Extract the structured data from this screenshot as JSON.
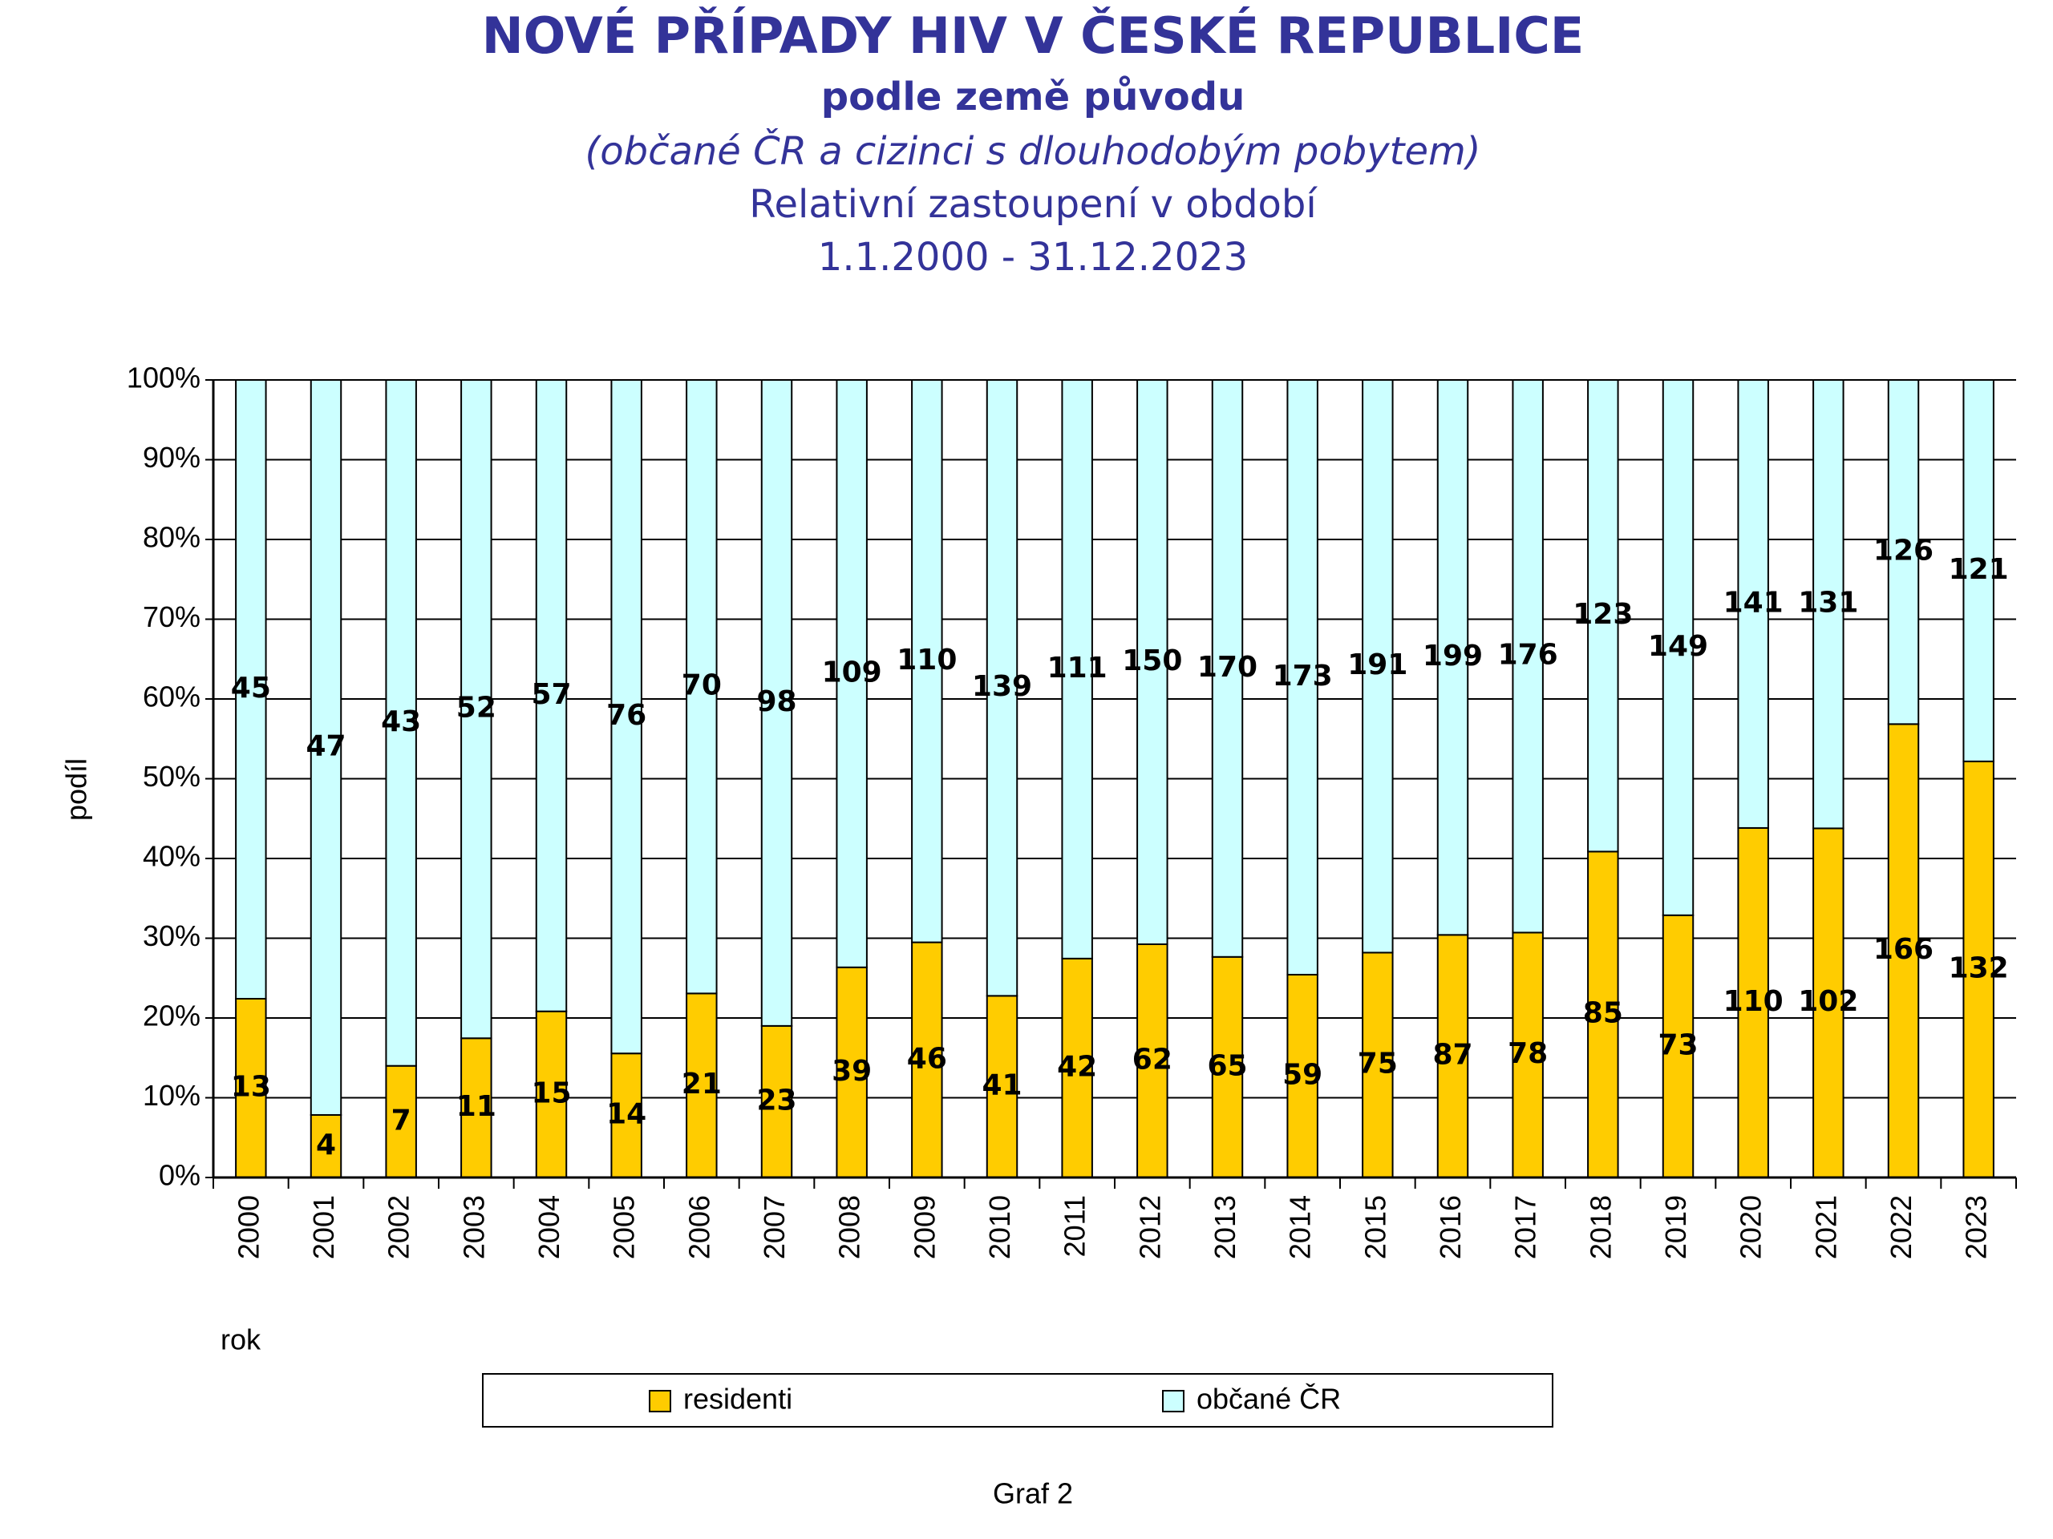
{
  "chart_data": {
    "type": "bar",
    "stacked": true,
    "normalize": true,
    "title": "NOVÉ PŘÍPADY HIV V ČESKÉ REPUBLICE",
    "subtitle": "podle země původu",
    "subtitle2": "(občané ČR a cizinci s dlouhodobým pobytem)",
    "subtitle3": "Relativní zastoupení v období",
    "subtitle4": "1.1.2000 - 31.12.2023",
    "x_label": "rok",
    "y_label": "podíl",
    "caption": "Graf 2",
    "categories": [
      "2000",
      "2001",
      "2002",
      "2003",
      "2004",
      "2005",
      "2006",
      "2007",
      "2008",
      "2009",
      "2010",
      "2011",
      "2012",
      "2013",
      "2014",
      "2015",
      "2016",
      "2017",
      "2018",
      "2019",
      "2020",
      "2021",
      "2022",
      "2023"
    ],
    "series": [
      {
        "name": "residenti",
        "color": "#ffcc00",
        "values": [
          13,
          4,
          7,
          11,
          15,
          14,
          21,
          23,
          39,
          46,
          41,
          42,
          62,
          65,
          59,
          75,
          87,
          78,
          85,
          73,
          110,
          102,
          166,
          132
        ]
      },
      {
        "name": "občané ČR",
        "color": "#ccffff",
        "values": [
          45,
          47,
          43,
          52,
          57,
          76,
          70,
          98,
          109,
          110,
          139,
          111,
          150,
          170,
          173,
          191,
          199,
          176,
          123,
          149,
          141,
          131,
          126,
          121
        ]
      }
    ],
    "ylim": [
      0,
      100
    ],
    "yticks": [
      {
        "value": 0,
        "label": "0%"
      },
      {
        "value": 10,
        "label": "10%"
      },
      {
        "value": 20,
        "label": "20%"
      },
      {
        "value": 30,
        "label": "30%"
      },
      {
        "value": 40,
        "label": "40%"
      },
      {
        "value": 50,
        "label": "50%"
      },
      {
        "value": 60,
        "label": "60%"
      },
      {
        "value": 70,
        "label": "70%"
      },
      {
        "value": 80,
        "label": "80%"
      },
      {
        "value": 90,
        "label": "90%"
      },
      {
        "value": 100,
        "label": "100%"
      }
    ],
    "grid": true,
    "legend": "bottom"
  }
}
